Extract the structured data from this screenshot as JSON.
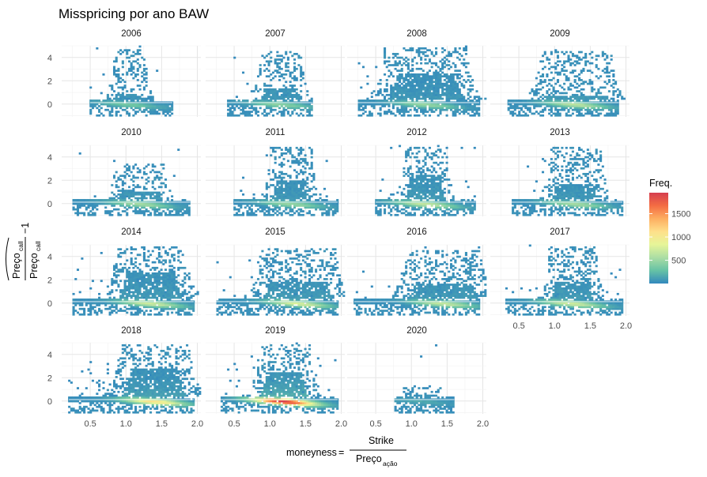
{
  "title": "Misspricing por ano BAW",
  "chart_data": {
    "type": "heatmap",
    "title": "Misspricing por ano BAW",
    "facets": [
      "2006",
      "2007",
      "2008",
      "2009",
      "2010",
      "2011",
      "2012",
      "2013",
      "2014",
      "2015",
      "2016",
      "2017",
      "2018",
      "2019",
      "2020"
    ],
    "xlabel": {
      "text": "moneyness",
      "numerator": "Strike",
      "denominator_base": "Preço",
      "denominator_sub": "ação"
    },
    "ylabel": {
      "hat_base": "Preço",
      "hat_sub": "call",
      "base": "Preço",
      "sub": "call",
      "suffix": "−1"
    },
    "xlim": [
      0.1,
      2.05
    ],
    "ylim": [
      -1.1,
      5.0
    ],
    "x_ticks": [
      "0.5",
      "1.0",
      "1.5",
      "2.0"
    ],
    "x_tick_values": [
      0.5,
      1.0,
      1.5,
      2.0
    ],
    "y_ticks": [
      "0",
      "2",
      "4"
    ],
    "y_tick_values": [
      0,
      2,
      4
    ],
    "legend": {
      "title": "Freq.",
      "ticks": [
        "500",
        "1000",
        "1500"
      ],
      "tick_values": [
        500,
        1000,
        1500
      ],
      "range": [
        1,
        1950
      ],
      "position": "right"
    },
    "colormap": [
      "#3288bd",
      "#66c2a5",
      "#abdda4",
      "#e6f598",
      "#fee08b",
      "#fdae61",
      "#f46d43",
      "#d53e4f"
    ],
    "grid": true,
    "facet_params": {
      "2006": {
        "xs": 0.5,
        "xe": 1.65,
        "c": 1.05,
        "w": 0.14,
        "top": 4.7,
        "dense": 0.5,
        "rows": 0.3,
        "peak": 300
      },
      "2007": {
        "xs": 0.4,
        "xe": 1.6,
        "c": 1.15,
        "w": 0.18,
        "top": 4.6,
        "dense": 0.9,
        "rows": 0.4,
        "peak": 400
      },
      "2008": {
        "xs": 0.25,
        "xe": 1.95,
        "c": 1.2,
        "w": 0.35,
        "top": 4.9,
        "dense": 2.2,
        "rows": 0.75,
        "peak": 450
      },
      "2009": {
        "xs": 0.35,
        "xe": 1.9,
        "c": 1.3,
        "w": 0.3,
        "top": 4.5,
        "dense": 0.3,
        "rows": 0.35,
        "peak": 600
      },
      "2010": {
        "xs": 0.25,
        "xe": 1.9,
        "c": 1.2,
        "w": 0.2,
        "top": 3.5,
        "dense": 0.6,
        "rows": 0.4,
        "peak": 500
      },
      "2011": {
        "xs": 0.5,
        "xe": 1.95,
        "c": 1.3,
        "w": 0.18,
        "top": 4.9,
        "dense": 1.6,
        "rows": 0.45,
        "peak": 450
      },
      "2012": {
        "xs": 0.5,
        "xe": 1.9,
        "c": 1.2,
        "w": 0.18,
        "top": 4.9,
        "dense": 2.0,
        "rows": 0.5,
        "peak": 650
      },
      "2013": {
        "xs": 0.4,
        "xe": 1.95,
        "c": 1.3,
        "w": 0.22,
        "top": 4.9,
        "dense": 1.2,
        "rows": 0.5,
        "peak": 500
      },
      "2014": {
        "xs": 0.25,
        "xe": 1.95,
        "c": 1.35,
        "w": 0.3,
        "top": 4.9,
        "dense": 2.2,
        "rows": 0.85,
        "peak": 700
      },
      "2015": {
        "xs": 0.25,
        "xe": 1.95,
        "c": 1.4,
        "w": 0.32,
        "top": 4.7,
        "dense": 1.4,
        "rows": 0.6,
        "peak": 750
      },
      "2016": {
        "xs": 0.2,
        "xe": 1.95,
        "c": 1.45,
        "w": 0.32,
        "top": 4.6,
        "dense": 1.2,
        "rows": 0.6,
        "peak": 650
      },
      "2017": {
        "xs": 0.3,
        "xe": 1.95,
        "c": 1.25,
        "w": 0.2,
        "top": 4.8,
        "dense": 1.4,
        "rows": 0.55,
        "peak": 700
      },
      "2018": {
        "xs": 0.2,
        "xe": 1.95,
        "c": 1.4,
        "w": 0.3,
        "top": 4.9,
        "dense": 2.3,
        "rows": 0.85,
        "peak": 1050
      },
      "2019": {
        "xs": 0.3,
        "xe": 1.95,
        "c": 1.2,
        "w": 0.22,
        "top": 4.8,
        "dense": 2.0,
        "rows": 0.65,
        "peak": 1950
      },
      "2020": {
        "xs": 0.75,
        "xe": 1.6,
        "c": 1.15,
        "w": 0.12,
        "top": 1.2,
        "dense": 0.1,
        "rows": 0.2,
        "peak": 120
      }
    }
  }
}
